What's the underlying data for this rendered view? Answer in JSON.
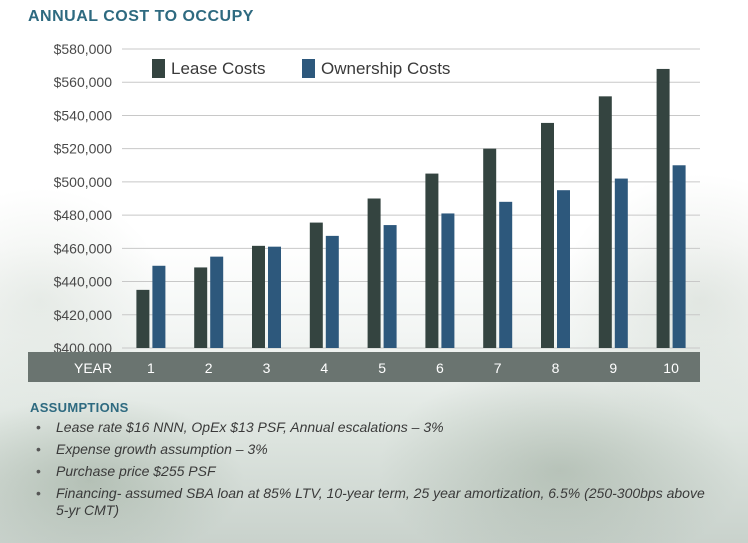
{
  "title": "ANNUAL COST TO OCCUPY",
  "colors": {
    "title": "#2e6a80",
    "lease": "#344440",
    "ownership": "#2d587c",
    "band": "#6a7470"
  },
  "chart_data": {
    "type": "bar",
    "title": "ANNUAL COST TO OCCUPY",
    "x_label": "YEAR",
    "categories": [
      "1",
      "2",
      "3",
      "4",
      "5",
      "6",
      "7",
      "8",
      "9",
      "10"
    ],
    "series": [
      {
        "name": "Lease Costs",
        "values": [
          435000,
          448500,
          461500,
          475500,
          490000,
          505000,
          520000,
          535500,
          551500,
          568000
        ]
      },
      {
        "name": "Ownership Costs",
        "values": [
          449500,
          455000,
          461000,
          467500,
          474000,
          481000,
          488000,
          495000,
          502000,
          510000
        ]
      }
    ],
    "ylim": [
      400000,
      580000
    ],
    "y_ticks": [
      "$400,000",
      "$420,000",
      "$440,000",
      "$460,000",
      "$480,000",
      "$500,000",
      "$520,000",
      "$540,000",
      "$560,000",
      "$580,000"
    ],
    "y_tick_values": [
      400000,
      420000,
      440000,
      460000,
      480000,
      500000,
      520000,
      540000,
      560000,
      580000
    ],
    "grid": true,
    "legend_position": "top"
  },
  "assumptions": {
    "heading": "ASSUMPTIONS",
    "bullet": "•",
    "items": [
      "Lease rate $16 NNN, OpEx $13 PSF, Annual escalations – 3%",
      "Expense growth assumption – 3%",
      "Purchase price $255 PSF",
      "Financing- assumed SBA loan at 85% LTV, 10-year term, 25 year amortization, 6.5% (250-300bps above 5-yr CMT)"
    ]
  }
}
